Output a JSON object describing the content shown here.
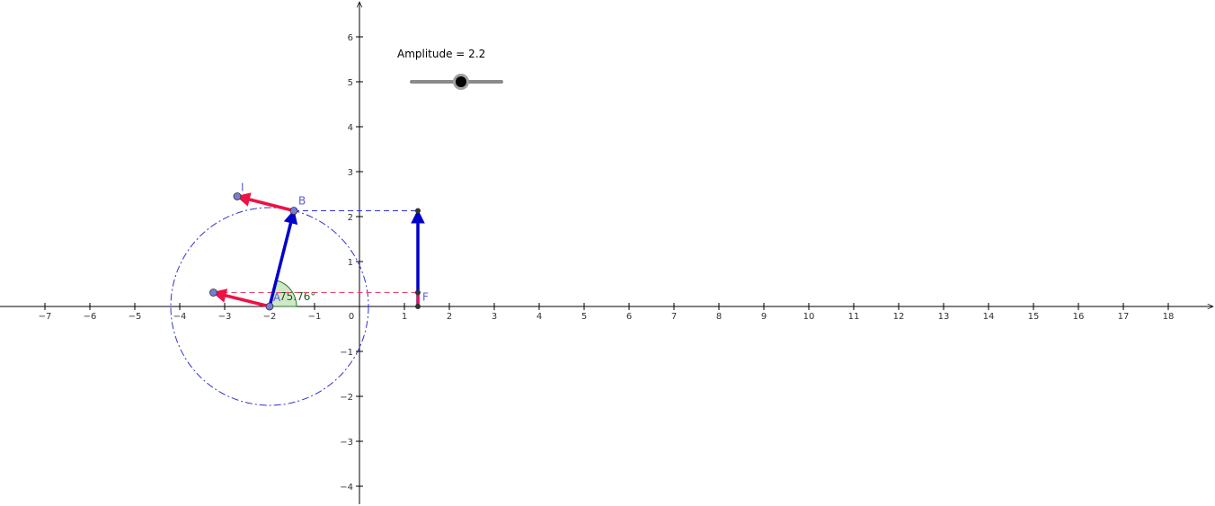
{
  "slider": {
    "name": "Amplitude",
    "caption": "Amplitude = 2.2",
    "value": 2.2,
    "min": 0,
    "max": 4
  },
  "axes": {
    "x_ticks": [
      -7,
      -6,
      -5,
      -4,
      -3,
      -2,
      -1,
      0,
      1,
      2,
      3,
      4,
      5,
      6,
      7,
      8,
      9,
      10,
      11,
      12,
      13,
      14,
      15,
      16,
      17,
      18
    ],
    "y_ticks": [
      -4,
      -3,
      -2,
      -1,
      1,
      2,
      3,
      4,
      5,
      6
    ],
    "x_labels": [
      "−7",
      "−6",
      "−5",
      "−4",
      "−3",
      "−2",
      "−1",
      "0",
      "1",
      "2",
      "3",
      "4",
      "5",
      "6",
      "7",
      "8",
      "9",
      "10",
      "11",
      "12",
      "13",
      "14",
      "15",
      "16",
      "17",
      "18"
    ],
    "y_labels": [
      "−4",
      "−3",
      "−2",
      "−1",
      "1",
      "2",
      "3",
      "4",
      "5",
      "6"
    ]
  },
  "figure": {
    "center": [
      -2,
      0
    ],
    "radius": 2.2,
    "angle_deg": 75.76,
    "angle_label": "75.76°",
    "B": [
      -1.46,
      2.13
    ],
    "I": [
      -2.72,
      2.45
    ],
    "J": [
      -3.25,
      0.31
    ],
    "F": [
      1.3,
      0.31
    ],
    "F_bottom": [
      1.3,
      0
    ],
    "proj_top": [
      1.3,
      2.13
    ]
  },
  "labels": {
    "B": "B",
    "I": "I",
    "F": "F",
    "A": "A"
  },
  "colors": {
    "blue": "#0000cc",
    "red": "#ee1144",
    "dashed_blue": "#3333cc",
    "dashed_red": "#ee4466",
    "angle_fill": "#cfe8c8",
    "angle_stroke": "#2a7a2a",
    "point": "#7b7bd6"
  }
}
